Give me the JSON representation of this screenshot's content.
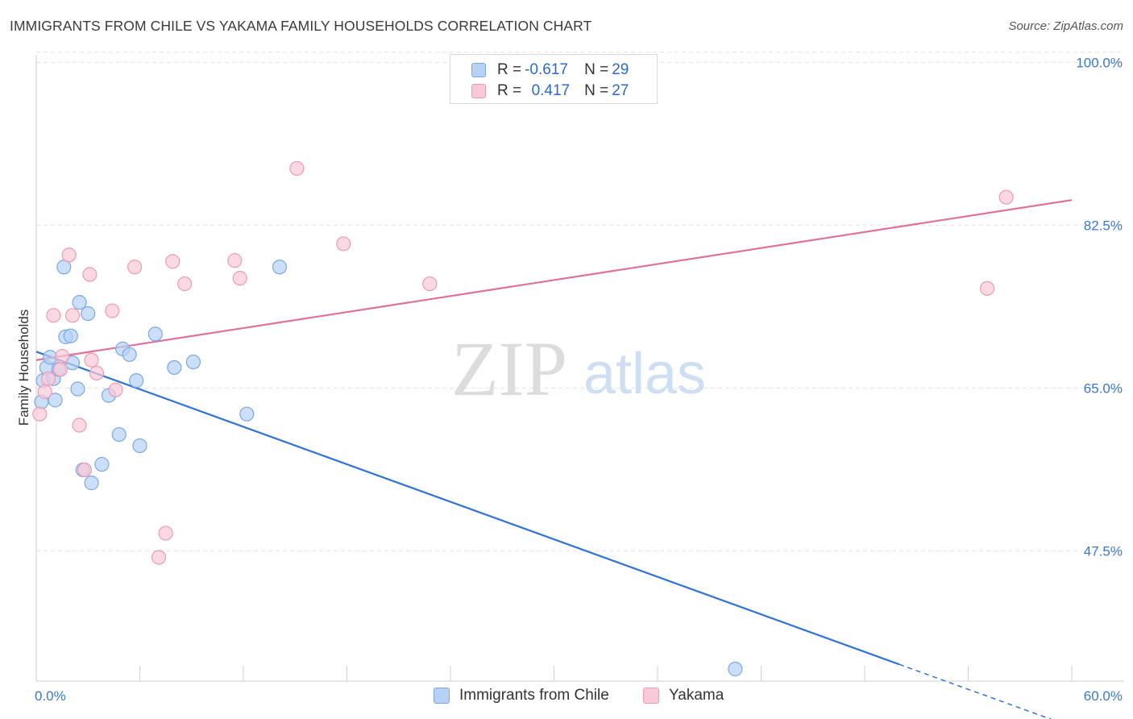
{
  "title": "IMMIGRANTS FROM CHILE VS YAKAMA FAMILY HOUSEHOLDS CORRELATION CHART",
  "source": "Source: ZipAtlas.com",
  "legend_top": [
    {
      "r_label": "R = ",
      "r_value": "-0.617",
      "n_label": "N = ",
      "n_value": "29"
    },
    {
      "r_label": "R = ",
      "r_value": "0.417",
      "n_label": "N = ",
      "n_value": "27"
    }
  ],
  "legend_bottom": [
    "Immigrants from Chile",
    "Yakama"
  ],
  "watermark": {
    "zip": "ZIP",
    "atlas": "atlas"
  },
  "colors": {
    "blue_fill": "#b7d1f5",
    "blue_stroke": "#7aa8e6",
    "blue_line": "#2f74d6",
    "pink_fill": "#f9c9d7",
    "pink_stroke": "#ee9ab4",
    "pink_line": "#e0709a",
    "tick_text": "#3a78d0"
  },
  "chart_data": {
    "type": "scatter",
    "title": "IMMIGRANTS FROM CHILE VS YAKAMA FAMILY HOUSEHOLDS CORRELATION CHART",
    "xlabel": "",
    "ylabel": "Family Households",
    "xlim": [
      0,
      60
    ],
    "ylim": [
      33.5,
      101.5
    ],
    "y_ticks": [
      47.5,
      65.0,
      82.5,
      100.0
    ],
    "y_tick_labels": [
      "47.5%",
      "65.0%",
      "82.5%",
      "100.0%"
    ],
    "x_tick_labels": [
      "0.0%",
      "60.0%"
    ],
    "grid": true,
    "legend_position": "top-center",
    "series": [
      {
        "name": "Immigrants from Chile",
        "color": "#7aa8e6",
        "points": [
          [
            0.3,
            63.5
          ],
          [
            0.4,
            65.8
          ],
          [
            0.6,
            67.2
          ],
          [
            0.8,
            68.3
          ],
          [
            1.0,
            66.0
          ],
          [
            1.1,
            63.7
          ],
          [
            1.3,
            67.0
          ],
          [
            1.6,
            78.0
          ],
          [
            1.7,
            70.5
          ],
          [
            2.0,
            70.6
          ],
          [
            2.1,
            67.7
          ],
          [
            2.4,
            64.9
          ],
          [
            2.5,
            74.2
          ],
          [
            2.7,
            56.2
          ],
          [
            3.0,
            73.0
          ],
          [
            3.2,
            54.8
          ],
          [
            3.8,
            56.8
          ],
          [
            4.2,
            64.2
          ],
          [
            4.8,
            60.0
          ],
          [
            5.0,
            69.2
          ],
          [
            5.4,
            68.6
          ],
          [
            5.8,
            65.8
          ],
          [
            6.0,
            58.8
          ],
          [
            6.9,
            70.8
          ],
          [
            8.0,
            67.2
          ],
          [
            9.1,
            67.8
          ],
          [
            12.2,
            62.2
          ],
          [
            14.1,
            78.0
          ],
          [
            40.5,
            34.8
          ]
        ],
        "trend": {
          "x": [
            0,
            50
          ],
          "y": [
            68.9,
            35.3
          ],
          "dashed_to": [
            60,
            28.6
          ]
        }
      },
      {
        "name": "Yakama",
        "color": "#ee9ab4",
        "points": [
          [
            0.2,
            62.2
          ],
          [
            0.5,
            64.6
          ],
          [
            0.7,
            66.0
          ],
          [
            1.0,
            72.8
          ],
          [
            1.4,
            67.0
          ],
          [
            1.5,
            68.4
          ],
          [
            1.9,
            79.3
          ],
          [
            2.1,
            72.8
          ],
          [
            2.5,
            61.0
          ],
          [
            2.8,
            56.2
          ],
          [
            3.1,
            77.2
          ],
          [
            3.2,
            68.0
          ],
          [
            3.5,
            66.6
          ],
          [
            4.4,
            73.3
          ],
          [
            4.6,
            64.8
          ],
          [
            5.7,
            78.0
          ],
          [
            7.1,
            46.8
          ],
          [
            7.5,
            49.4
          ],
          [
            7.9,
            78.6
          ],
          [
            8.6,
            76.2
          ],
          [
            11.5,
            78.7
          ],
          [
            11.8,
            76.8
          ],
          [
            15.1,
            88.6
          ],
          [
            17.8,
            80.5
          ],
          [
            22.8,
            76.2
          ],
          [
            55.1,
            75.7
          ],
          [
            56.2,
            85.5
          ]
        ],
        "trend": {
          "x": [
            0,
            60
          ],
          "y": [
            68.0,
            85.2
          ]
        }
      }
    ]
  }
}
